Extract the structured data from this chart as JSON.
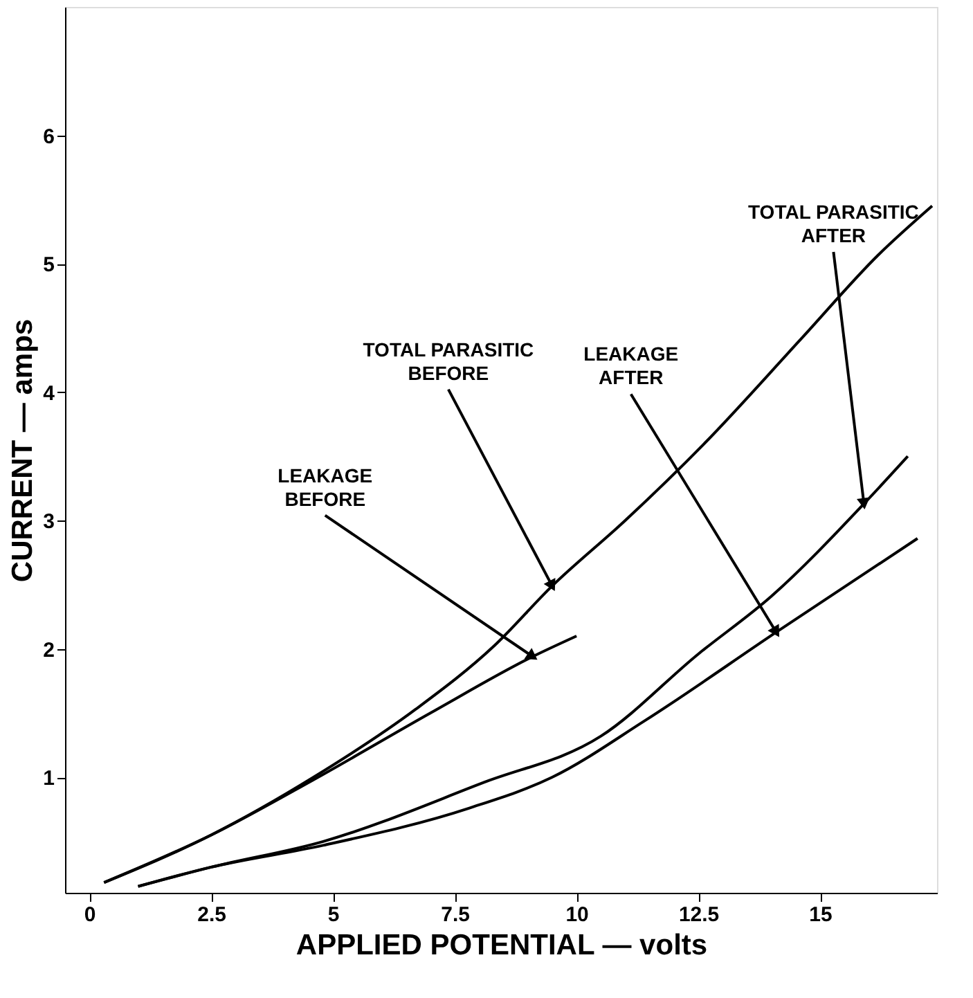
{
  "chart_data": {
    "type": "line",
    "xlabel": "APPLIED POTENTIAL — volts",
    "ylabel": "CURRENT — amps",
    "xlim": [
      -0.5,
      17.4
    ],
    "ylim": [
      0.1,
      7.0
    ],
    "xticks": [
      0,
      2.5,
      5,
      7.5,
      10,
      12.5,
      15
    ],
    "yticks": [
      1,
      2,
      3,
      4,
      5,
      6
    ],
    "grid": false,
    "marker": "none",
    "line_style": "solid",
    "series": [
      {
        "color": "#000000",
        "x": [
          0.3,
          2.5,
          4.6,
          6.7,
          8.3,
          9.5,
          11.0,
          12.6,
          14.6,
          16.2,
          17.3
        ],
        "values": [
          0.18,
          0.55,
          1.0,
          1.53,
          2.02,
          2.49,
          3.0,
          3.59,
          4.41,
          5.07,
          5.45
        ]
      },
      {
        "color": "#000000",
        "x": [
          0.3,
          2.5,
          4.6,
          7.0,
          9.1,
          10.0
        ],
        "values": [
          0.18,
          0.55,
          0.98,
          1.5,
          1.94,
          2.1
        ]
      },
      {
        "color": "#000000",
        "x": [
          1.0,
          2.5,
          4.8,
          8.1,
          10.5,
          12.5,
          14.0,
          15.9,
          16.8
        ],
        "values": [
          0.15,
          0.3,
          0.5,
          0.96,
          1.32,
          1.96,
          2.41,
          3.13,
          3.5
        ]
      },
      {
        "color": "#000000",
        "x": [
          1.0,
          2.5,
          4.8,
          7.8,
          9.5,
          11.4,
          14.1,
          17.0
        ],
        "values": [
          0.15,
          0.3,
          0.47,
          0.76,
          1.0,
          1.44,
          2.13,
          2.86
        ]
      }
    ],
    "annotations": [
      {
        "text": "TOTAL PARASITIC BEFORE",
        "x": 9.5,
        "y": 2.49
      },
      {
        "text": "LEAKAGE BEFORE",
        "x": 9.1,
        "y": 1.94
      },
      {
        "text": "LEAKAGE AFTER",
        "x": 14.1,
        "y": 2.13
      },
      {
        "text": "TOTAL PARASITIC AFTER",
        "x": 15.9,
        "y": 3.13
      }
    ]
  }
}
